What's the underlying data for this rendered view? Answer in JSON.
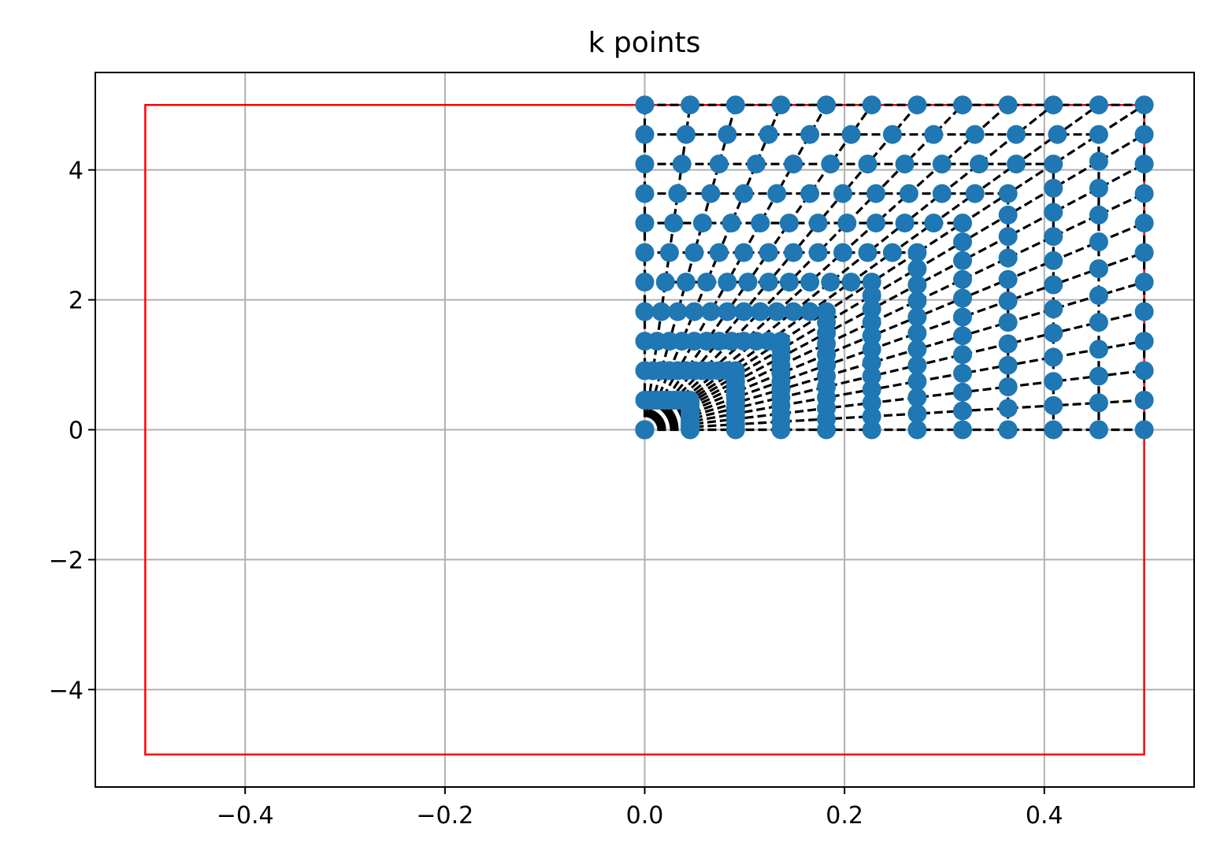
{
  "chart_data": {
    "type": "scatter",
    "title": "k points",
    "xlabel": "",
    "ylabel": "",
    "xlim": [
      -0.55,
      0.55
    ],
    "ylim": [
      -5.5,
      5.5
    ],
    "grid": true,
    "xticks": [
      -0.4,
      -0.2,
      0.0,
      0.2,
      0.4
    ],
    "xtick_labels": [
      "−0.4",
      "−0.2",
      "0.0",
      "0.2",
      "0.4"
    ],
    "yticks": [
      -4,
      -2,
      0,
      2,
      4
    ],
    "ytick_labels": [
      "−4",
      "−2",
      "0",
      "2",
      "4"
    ],
    "boundary_box": {
      "x": [
        -0.5,
        0.5
      ],
      "y": [
        -5,
        5
      ],
      "color": "#ff0000"
    },
    "grid_spec": {
      "nx": 12,
      "ny": 12,
      "kx_max": 0.5,
      "ky_max": 5.0
    },
    "series": [
      {
        "name": "k points",
        "marker": "circle",
        "color": "#1f77b4"
      },
      {
        "name": "radial paths",
        "style": "dashed",
        "color": "#000000"
      },
      {
        "name": "arcs",
        "style": "dashed",
        "color": "#000000"
      }
    ],
    "colors": {
      "points": "#1f77b4",
      "lines": "#000000",
      "grid": "#b0b0b0",
      "box": "#ff0000"
    }
  }
}
